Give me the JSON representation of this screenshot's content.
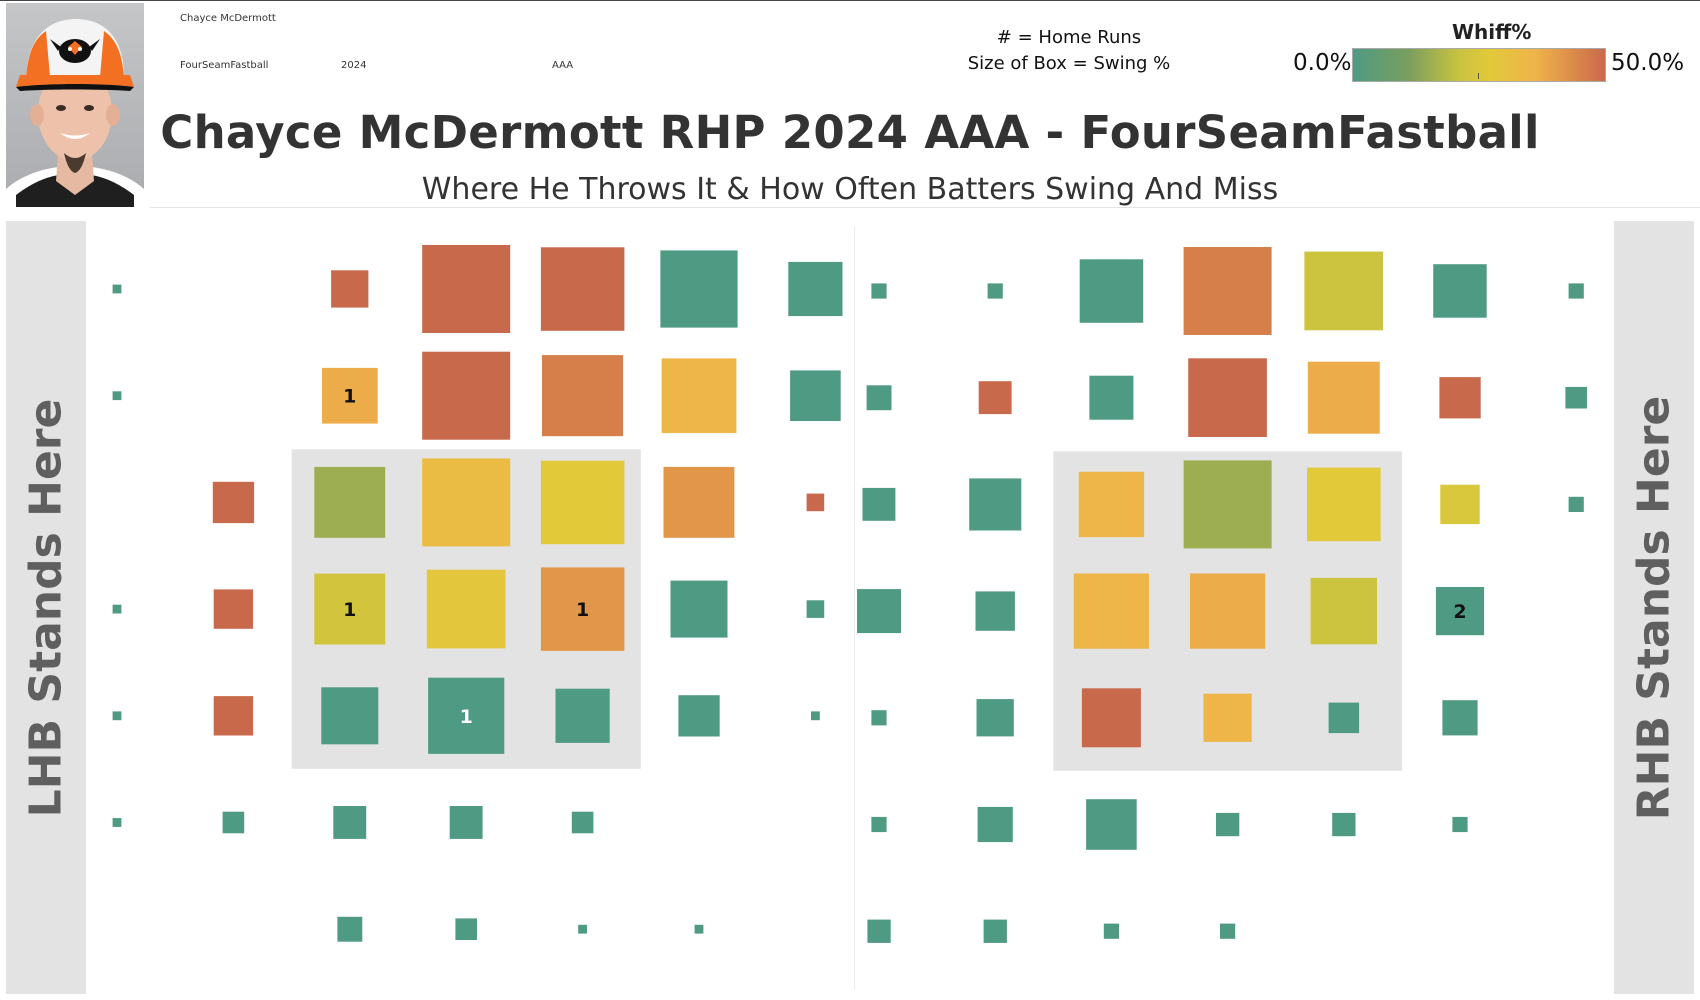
{
  "header": {
    "player_name": "Chayce McDermott",
    "pitch_type": "FourSeamFastball",
    "season": "2024",
    "level": "AAA",
    "photo_alt": "Chayce McDermott headshot"
  },
  "legend": {
    "home_runs_note": "# = Home Runs",
    "size_note": "Size of Box = Swing %",
    "color_title": "Whiff%",
    "color_min": "0.0%",
    "color_max": "50.0%"
  },
  "title": "Chayce McDermott RHP 2024 AAA - FourSeamFastball",
  "subtitle": "Where He Throws It & How Often Batters Swing And Miss",
  "side_labels": {
    "left": "LHB Stands Here",
    "right": "RHB Stands Here"
  },
  "colors": {
    "scale": [
      "#4f9a82",
      "#7a9e5f",
      "#c8c33f",
      "#e2c93a",
      "#efb44a",
      "#de8e4a",
      "#c9694c"
    ],
    "strike_zone": "#e3e3e3",
    "side_panel": "#e3e3e3"
  },
  "chart_data": [
    {
      "type": "heatmap",
      "panel": "LHB",
      "size_measure": "Swing %",
      "color_measure": "Whiff%",
      "color_range": [
        0,
        50
      ],
      "label_measure": "Home Runs",
      "grid_cols": 7,
      "grid_rows": 7,
      "strike_zone": {
        "cols": [
          2,
          4
        ],
        "rows": [
          2,
          4
        ]
      },
      "cells": [
        {
          "col": 0,
          "row": 0,
          "swing": 1,
          "whiff": 0
        },
        {
          "col": 2,
          "row": 0,
          "swing": 18,
          "whiff": 50
        },
        {
          "col": 3,
          "row": 0,
          "swing": 100,
          "whiff": 50
        },
        {
          "col": 4,
          "row": 0,
          "swing": 90,
          "whiff": 50
        },
        {
          "col": 5,
          "row": 0,
          "swing": 77,
          "whiff": 0
        },
        {
          "col": 6,
          "row": 0,
          "swing": 38,
          "whiff": 0
        },
        {
          "col": 0,
          "row": 1,
          "swing": 1,
          "whiff": 0
        },
        {
          "col": 2,
          "row": 1,
          "swing": 40,
          "whiff": 35,
          "hr": 1
        },
        {
          "col": 3,
          "row": 1,
          "swing": 100,
          "whiff": 50
        },
        {
          "col": 4,
          "row": 1,
          "swing": 85,
          "whiff": 45
        },
        {
          "col": 5,
          "row": 1,
          "swing": 72,
          "whiff": 33
        },
        {
          "col": 6,
          "row": 1,
          "swing": 33,
          "whiff": 0
        },
        {
          "col": 1,
          "row": 2,
          "swing": 22,
          "whiff": 50
        },
        {
          "col": 2,
          "row": 2,
          "swing": 65,
          "whiff": 12
        },
        {
          "col": 3,
          "row": 2,
          "swing": 100,
          "whiff": 30
        },
        {
          "col": 4,
          "row": 2,
          "swing": 90,
          "whiff": 25
        },
        {
          "col": 5,
          "row": 2,
          "swing": 65,
          "whiff": 40
        },
        {
          "col": 6,
          "row": 2,
          "swing": 4,
          "whiff": 50
        },
        {
          "col": 0,
          "row": 3,
          "swing": 1,
          "whiff": 0
        },
        {
          "col": 1,
          "row": 3,
          "swing": 20,
          "whiff": 50
        },
        {
          "col": 2,
          "row": 3,
          "swing": 65,
          "whiff": 20,
          "hr": 1
        },
        {
          "col": 3,
          "row": 3,
          "swing": 80,
          "whiff": 26
        },
        {
          "col": 4,
          "row": 3,
          "swing": 90,
          "whiff": 40,
          "hr": 1
        },
        {
          "col": 5,
          "row": 3,
          "swing": 42,
          "whiff": 0
        },
        {
          "col": 6,
          "row": 3,
          "swing": 4,
          "whiff": 0
        },
        {
          "col": 0,
          "row": 4,
          "swing": 1,
          "whiff": 0
        },
        {
          "col": 1,
          "row": 4,
          "swing": 20,
          "whiff": 50
        },
        {
          "col": 2,
          "row": 4,
          "swing": 42,
          "whiff": 0
        },
        {
          "col": 3,
          "row": 4,
          "swing": 75,
          "whiff": 0,
          "hr": 1
        },
        {
          "col": 4,
          "row": 4,
          "swing": 38,
          "whiff": 0
        },
        {
          "col": 5,
          "row": 4,
          "swing": 22,
          "whiff": 0
        },
        {
          "col": 6,
          "row": 4,
          "swing": 1,
          "whiff": 0
        },
        {
          "col": 0,
          "row": 5,
          "swing": 1,
          "whiff": 0
        },
        {
          "col": 1,
          "row": 5,
          "swing": 6,
          "whiff": 0
        },
        {
          "col": 2,
          "row": 5,
          "swing": 14,
          "whiff": 0
        },
        {
          "col": 3,
          "row": 5,
          "swing": 14,
          "whiff": 0
        },
        {
          "col": 4,
          "row": 5,
          "swing": 6,
          "whiff": 0
        },
        {
          "col": 2,
          "row": 6,
          "swing": 8,
          "whiff": 0
        },
        {
          "col": 3,
          "row": 6,
          "swing": 6,
          "whiff": 0
        },
        {
          "col": 4,
          "row": 6,
          "swing": 1,
          "whiff": 0
        },
        {
          "col": 5,
          "row": 6,
          "swing": 1,
          "whiff": 0
        }
      ]
    },
    {
      "type": "heatmap",
      "panel": "RHB",
      "size_measure": "Swing %",
      "color_measure": "Whiff%",
      "color_range": [
        0,
        50
      ],
      "label_measure": "Home Runs",
      "grid_cols": 7,
      "grid_rows": 7,
      "strike_zone": {
        "cols": [
          2,
          4
        ],
        "rows": [
          2,
          4
        ]
      },
      "cells": [
        {
          "col": 0,
          "row": 0,
          "swing": 3,
          "whiff": 0
        },
        {
          "col": 1,
          "row": 0,
          "swing": 3,
          "whiff": 0
        },
        {
          "col": 2,
          "row": 0,
          "swing": 52,
          "whiff": 0
        },
        {
          "col": 3,
          "row": 0,
          "swing": 100,
          "whiff": 45
        },
        {
          "col": 4,
          "row": 0,
          "swing": 80,
          "whiff": 18
        },
        {
          "col": 5,
          "row": 0,
          "swing": 37,
          "whiff": 0
        },
        {
          "col": 6,
          "row": 0,
          "swing": 3,
          "whiff": 0
        },
        {
          "col": 0,
          "row": 1,
          "swing": 8,
          "whiff": 0
        },
        {
          "col": 1,
          "row": 1,
          "swing": 14,
          "whiff": 50
        },
        {
          "col": 2,
          "row": 1,
          "swing": 25,
          "whiff": 0
        },
        {
          "col": 3,
          "row": 1,
          "swing": 80,
          "whiff": 50
        },
        {
          "col": 4,
          "row": 1,
          "swing": 67,
          "whiff": 35
        },
        {
          "col": 5,
          "row": 1,
          "swing": 22,
          "whiff": 50
        },
        {
          "col": 6,
          "row": 1,
          "swing": 6,
          "whiff": 0
        },
        {
          "col": 0,
          "row": 2,
          "swing": 14,
          "whiff": 0
        },
        {
          "col": 1,
          "row": 2,
          "swing": 35,
          "whiff": 0
        },
        {
          "col": 2,
          "row": 2,
          "swing": 55,
          "whiff": 33
        },
        {
          "col": 3,
          "row": 2,
          "swing": 100,
          "whiff": 12
        },
        {
          "col": 4,
          "row": 2,
          "swing": 70,
          "whiff": 25
        },
        {
          "col": 5,
          "row": 2,
          "swing": 20,
          "whiff": 22
        },
        {
          "col": 6,
          "row": 2,
          "swing": 3,
          "whiff": 0
        },
        {
          "col": 0,
          "row": 3,
          "swing": 25,
          "whiff": 0
        },
        {
          "col": 1,
          "row": 3,
          "swing": 20,
          "whiff": 0
        },
        {
          "col": 2,
          "row": 3,
          "swing": 73,
          "whiff": 33
        },
        {
          "col": 3,
          "row": 3,
          "swing": 73,
          "whiff": 35
        },
        {
          "col": 4,
          "row": 3,
          "swing": 57,
          "whiff": 18
        },
        {
          "col": 5,
          "row": 3,
          "swing": 30,
          "whiff": 0,
          "hr": 2
        },
        {
          "col": 0,
          "row": 4,
          "swing": 3,
          "whiff": 0
        },
        {
          "col": 1,
          "row": 4,
          "swing": 18,
          "whiff": 0
        },
        {
          "col": 2,
          "row": 4,
          "swing": 45,
          "whiff": 50
        },
        {
          "col": 3,
          "row": 4,
          "swing": 30,
          "whiff": 33
        },
        {
          "col": 4,
          "row": 4,
          "swing": 12,
          "whiff": 0
        },
        {
          "col": 5,
          "row": 4,
          "swing": 16,
          "whiff": 0
        },
        {
          "col": 0,
          "row": 5,
          "swing": 3,
          "whiff": 0
        },
        {
          "col": 1,
          "row": 5,
          "swing": 16,
          "whiff": 0
        },
        {
          "col": 2,
          "row": 5,
          "swing": 33,
          "whiff": 0
        },
        {
          "col": 3,
          "row": 5,
          "swing": 7,
          "whiff": 0
        },
        {
          "col": 4,
          "row": 5,
          "swing": 7,
          "whiff": 0
        },
        {
          "col": 5,
          "row": 5,
          "swing": 3,
          "whiff": 0
        },
        {
          "col": 0,
          "row": 6,
          "swing": 7,
          "whiff": 0
        },
        {
          "col": 1,
          "row": 6,
          "swing": 7,
          "whiff": 0
        },
        {
          "col": 2,
          "row": 6,
          "swing": 3,
          "whiff": 0
        },
        {
          "col": 3,
          "row": 6,
          "swing": 3,
          "whiff": 0
        }
      ]
    }
  ]
}
